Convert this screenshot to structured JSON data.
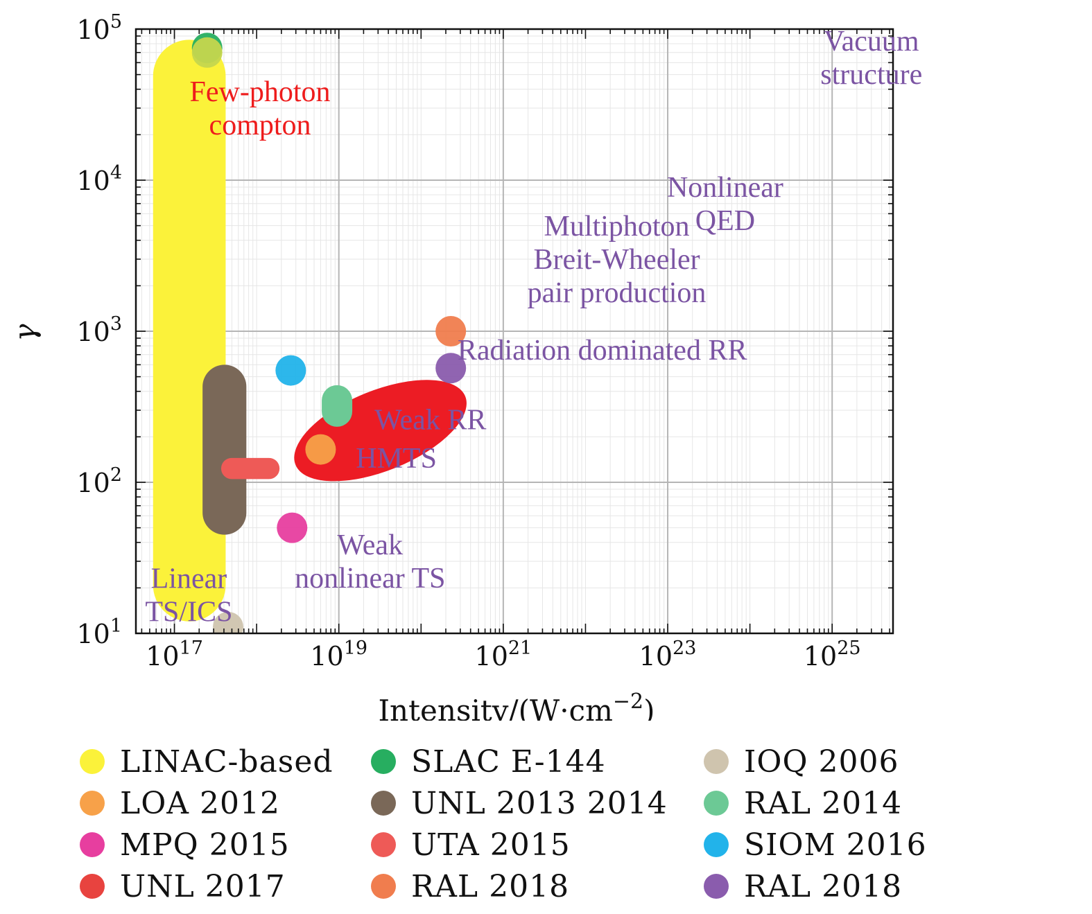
{
  "chart_data": {
    "type": "scatter",
    "title": "",
    "xlabel_main": "Intensity/(W·cm",
    "xlabel_exp": "−2",
    "xlabel_close": ")",
    "ylabel": "γ",
    "x_log": true,
    "y_log": true,
    "xlim": [
      3.4e+16,
      5.5e+25
    ],
    "ylim": [
      10,
      100000
    ],
    "grid": true,
    "x_ticks": [
      {
        "base": "10",
        "exp": "17",
        "value": 1e+17
      },
      {
        "base": "10",
        "exp": "19",
        "value": 1e+19
      },
      {
        "base": "10",
        "exp": "21",
        "value": 1e+21
      },
      {
        "base": "10",
        "exp": "23",
        "value": 1e+23
      },
      {
        "base": "10",
        "exp": "25",
        "value": 1e+25
      }
    ],
    "y_ticks": [
      {
        "base": "10",
        "exp": "1",
        "value": 10
      },
      {
        "base": "10",
        "exp": "2",
        "value": 100
      },
      {
        "base": "10",
        "exp": "3",
        "value": 1000
      },
      {
        "base": "10",
        "exp": "4",
        "value": 10000
      },
      {
        "base": "10",
        "exp": "5",
        "value": 100000
      }
    ],
    "regions": [
      {
        "name": "LINAC-based",
        "color": "#fbf23a",
        "x_range": [
          5.5e+16,
          4.2e+17
        ],
        "y_range": [
          12,
          85000
        ]
      },
      {
        "name": "UNL 2013 2014",
        "color": "#7a6858",
        "x_range": [
          2.2e+17,
          7.5e+17
        ],
        "y_range": [
          45,
          600
        ]
      },
      {
        "name": "UTA 2015",
        "color": "#ee5a57",
        "x_range": [
          3.7e+17,
          1.9e+18
        ],
        "y_range": [
          105,
          145
        ]
      }
    ],
    "points": [
      {
        "name": "SLAC E-144",
        "color": "#27ae60",
        "x": 2.5e+17,
        "y": 75000
      },
      {
        "name": "LINAC-based",
        "color": "#c5d64e",
        "x": 2.5e+17,
        "y": 70000
      },
      {
        "name": "IOQ 2006",
        "color": "#cfc4ae",
        "x": 4.5e+17,
        "y": 11
      },
      {
        "name": "SIOM 2016",
        "color": "#22b3ea",
        "x": 2.6e+18,
        "y": 550
      },
      {
        "name": "RAL 2014",
        "color": "#6cc995",
        "x": 9.5e+18,
        "y": 320
      },
      {
        "name": "LOA 2012",
        "color": "#f7a149",
        "x": 6e+18,
        "y": 165
      },
      {
        "name": "MPQ 2015",
        "color": "#e73e9f",
        "x": 2.7e+18,
        "y": 50
      },
      {
        "name": "RAL 2018",
        "color": "#f07d4e",
        "x": 2.3e+20,
        "y": 1000
      },
      {
        "name": "RAL 2018",
        "color": "#8a5cad",
        "x": 2.3e+20,
        "y": 570
      }
    ],
    "ellipses": [
      {
        "name": "UNL 2017",
        "color": "#ec1c24",
        "x_center": 3.2e+19,
        "y_center": 220,
        "rotation_deg": -22
      }
    ],
    "annotations": [
      {
        "lines": [
          "Few-photon",
          "compton"
        ],
        "color": "#ee1c1c",
        "x": 1.1e+18,
        "y": 30000
      },
      {
        "lines": [
          "Vacuum",
          "structure"
        ],
        "color": "#7b54a3",
        "x": 3e+25,
        "y": 65000
      },
      {
        "lines": [
          "Nonlinear",
          "QED"
        ],
        "color": "#7b54a3",
        "x": 5e+23,
        "y": 7000
      },
      {
        "lines": [
          "Multiphoton",
          "Breit-Wheeler",
          "pair production"
        ],
        "color": "#7b54a3",
        "x": 2.4e+22,
        "y": 3000
      },
      {
        "lines": [
          "Radiation dominated RR"
        ],
        "color": "#7b54a3",
        "x": 1.6e+22,
        "y": 750
      },
      {
        "lines": [
          "Weak RR"
        ],
        "color": "#7b54a3",
        "x": 1.3e+20,
        "y": 260
      },
      {
        "lines": [
          "HMTS"
        ],
        "color": "#7b54a3",
        "x": 5e+19,
        "y": 145
      },
      {
        "lines": [
          "Weak",
          "nonlinear TS"
        ],
        "color": "#7b54a3",
        "x": 2.4e+19,
        "y": 30
      },
      {
        "lines": [
          "Linear",
          "TS/ICS"
        ],
        "color": "#7b54a3",
        "x": 1.5e+17,
        "y": 18
      }
    ]
  },
  "legend": [
    {
      "label": "LINAC-based",
      "color": "#fbf23a"
    },
    {
      "label": "SLAC E-144",
      "color": "#27ae60"
    },
    {
      "label": "IOQ 2006",
      "color": "#cfc4ae"
    },
    {
      "label": "LOA 2012",
      "color": "#f7a149"
    },
    {
      "label": "UNL 2013 2014",
      "color": "#7a6858"
    },
    {
      "label": "RAL 2014",
      "color": "#6cc995"
    },
    {
      "label": "MPQ 2015",
      "color": "#e73e9f"
    },
    {
      "label": "UTA 2015",
      "color": "#ee5a57"
    },
    {
      "label": "SIOM 2016",
      "color": "#22b3ea"
    },
    {
      "label": "UNL 2017",
      "color": "#e8433f"
    },
    {
      "label": "RAL 2018",
      "color": "#f07d4e"
    },
    {
      "label": "RAL 2018",
      "color": "#8a5cad"
    }
  ]
}
